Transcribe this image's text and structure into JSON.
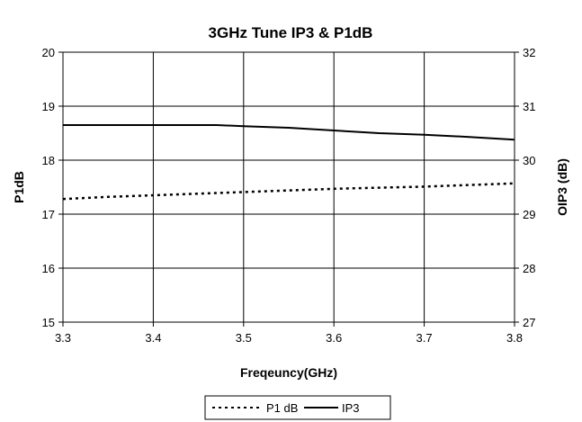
{
  "chart_data": {
    "type": "line",
    "title": "3GHz Tune IP3 & P1dB",
    "xlabel": "Freqeuncy(GHz)",
    "ylabel_left": "P1dB",
    "ylabel_right": "OIP3 (dB)",
    "xlim": [
      3.3,
      3.8
    ],
    "ylim_left": [
      15,
      20
    ],
    "ylim_right": [
      27,
      32
    ],
    "x_ticks": [
      "3.3",
      "3.4",
      "3.5",
      "3.6",
      "3.7",
      "3.8"
    ],
    "y_ticks_left": [
      "15",
      "16",
      "17",
      "18",
      "19",
      "20"
    ],
    "y_ticks_right": [
      "27",
      "28",
      "29",
      "30",
      "31",
      "32"
    ],
    "grid": true,
    "legend_position": "bottom",
    "series": [
      {
        "name": "P1 dB",
        "axis": "left",
        "style": "dotted",
        "color": "#000000",
        "x": [
          3.3,
          3.35,
          3.4,
          3.45,
          3.5,
          3.55,
          3.6,
          3.65,
          3.7,
          3.75,
          3.8
        ],
        "y": [
          17.28,
          17.32,
          17.35,
          17.38,
          17.41,
          17.44,
          17.47,
          17.49,
          17.51,
          17.54,
          17.57
        ]
      },
      {
        "name": "IP3",
        "axis": "right",
        "style": "solid",
        "color": "#000000",
        "x": [
          3.3,
          3.35,
          3.4,
          3.45,
          3.47,
          3.5,
          3.55,
          3.6,
          3.65,
          3.7,
          3.75,
          3.8
        ],
        "y": [
          30.65,
          30.65,
          30.65,
          30.65,
          30.65,
          30.63,
          30.6,
          30.55,
          30.5,
          30.47,
          30.43,
          30.38
        ]
      }
    ]
  }
}
